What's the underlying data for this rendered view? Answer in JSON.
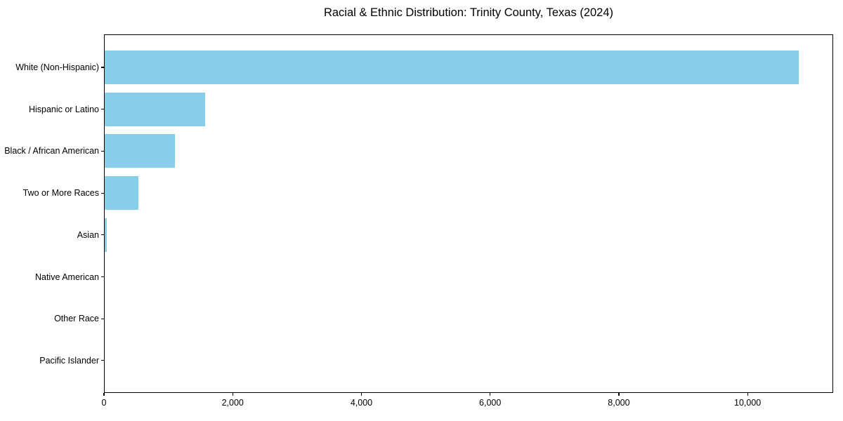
{
  "chart_data": {
    "type": "bar",
    "orientation": "horizontal",
    "title": "Racial & Ethnic Distribution: Trinity County, Texas (2024)",
    "categories": [
      "White (Non-Hispanic)",
      "Hispanic or Latino",
      "Black / African American",
      "Two or More Races",
      "Asian",
      "Native American",
      "Other Race",
      "Pacific Islander"
    ],
    "values": [
      10800,
      1570,
      1100,
      535,
      45,
      5,
      3,
      1
    ],
    "xlabel": "",
    "ylabel": "",
    "xlim": [
      0,
      11330
    ],
    "xticks": [
      0,
      2000,
      4000,
      6000,
      8000,
      10000
    ],
    "xtick_labels": [
      "0",
      "2,000",
      "4,000",
      "6,000",
      "8,000",
      "10,000"
    ],
    "bar_color": "#87CEEB",
    "background_color": "#ffffff",
    "spine_color": "#000000",
    "text_color": "#000000",
    "grid": false,
    "legend": false
  }
}
